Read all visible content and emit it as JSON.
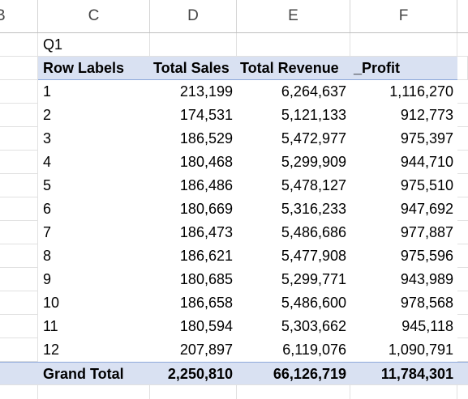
{
  "columns": {
    "b": "B",
    "c": "C",
    "d": "D",
    "e": "E",
    "f": "F"
  },
  "title_cell": "Q1",
  "pivot": {
    "headers": {
      "row_labels": "Row Labels",
      "total_sales": "Total Sales",
      "total_revenue": "Total Revenue",
      "profit": "_Profit"
    },
    "rows": [
      {
        "label": "1",
        "sales": "213,199",
        "revenue": "6,264,637",
        "profit": "1,116,270"
      },
      {
        "label": "2",
        "sales": "174,531",
        "revenue": "5,121,133",
        "profit": "912,773"
      },
      {
        "label": "3",
        "sales": "186,529",
        "revenue": "5,472,977",
        "profit": "975,397"
      },
      {
        "label": "4",
        "sales": "180,468",
        "revenue": "5,299,909",
        "profit": "944,710"
      },
      {
        "label": "5",
        "sales": "186,486",
        "revenue": "5,478,127",
        "profit": "975,510"
      },
      {
        "label": "6",
        "sales": "180,669",
        "revenue": "5,316,233",
        "profit": "947,692"
      },
      {
        "label": "7",
        "sales": "186,473",
        "revenue": "5,486,686",
        "profit": "977,887"
      },
      {
        "label": "8",
        "sales": "186,621",
        "revenue": "5,477,908",
        "profit": "975,596"
      },
      {
        "label": "9",
        "sales": "180,685",
        "revenue": "5,299,771",
        "profit": "943,989"
      },
      {
        "label": "10",
        "sales": "186,658",
        "revenue": "5,486,600",
        "profit": "978,568"
      },
      {
        "label": "11",
        "sales": "180,594",
        "revenue": "5,303,662",
        "profit": "945,118"
      },
      {
        "label": "12",
        "sales": "207,897",
        "revenue": "6,119,076",
        "profit": "1,090,791"
      }
    ],
    "grand_total": {
      "label": "Grand Total",
      "sales": "2,250,810",
      "revenue": "66,126,719",
      "profit": "11,784,301"
    }
  },
  "colors": {
    "pivot_header_bg": "#d9e1f2",
    "pivot_border": "#8ea9db",
    "grid_line": "#e1e1e1"
  }
}
